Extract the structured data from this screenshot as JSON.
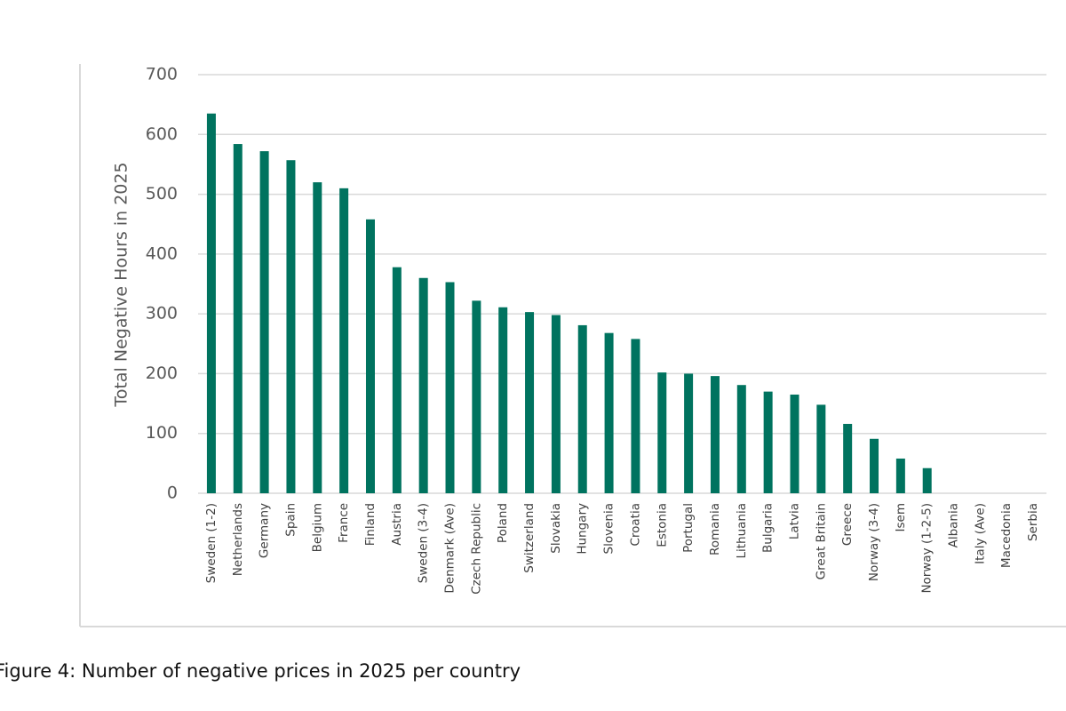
{
  "chart_data": {
    "type": "bar",
    "ylabel": "Total Negative Hours in 2025",
    "caption": "Figure 4: Number of negative prices in 2025 per country",
    "categories": [
      "Sweden (1-2)",
      "Netherlands",
      "Germany",
      "Spain",
      "Belgium",
      "France",
      "Finland",
      "Austria",
      "Sweden (3-4)",
      "Denmark (Ave)",
      "Czech Republic",
      "Poland",
      "Switzerland",
      "Slovakia",
      "Hungary",
      "Slovenia",
      "Croatia",
      "Estonia",
      "Portugal",
      "Romania",
      "Lithuania",
      "Bulgaria",
      "Latvia",
      "Great Britain",
      "Greece",
      "Norway (3-4)",
      "Isem",
      "Norway (1-2-5)",
      "Albania",
      "Italy (Ave)",
      "Macedonia",
      "Serbia"
    ],
    "values": [
      635,
      584,
      572,
      557,
      520,
      510,
      458,
      378,
      360,
      353,
      322,
      311,
      303,
      298,
      281,
      268,
      258,
      202,
      200,
      196,
      181,
      170,
      165,
      148,
      116,
      91,
      58,
      42,
      0,
      0,
      0,
      0
    ],
    "color": "#00735f",
    "ylim": [
      0,
      700
    ],
    "yticks": [
      0,
      100,
      200,
      300,
      400,
      500,
      600,
      700
    ],
    "grid": true
  }
}
